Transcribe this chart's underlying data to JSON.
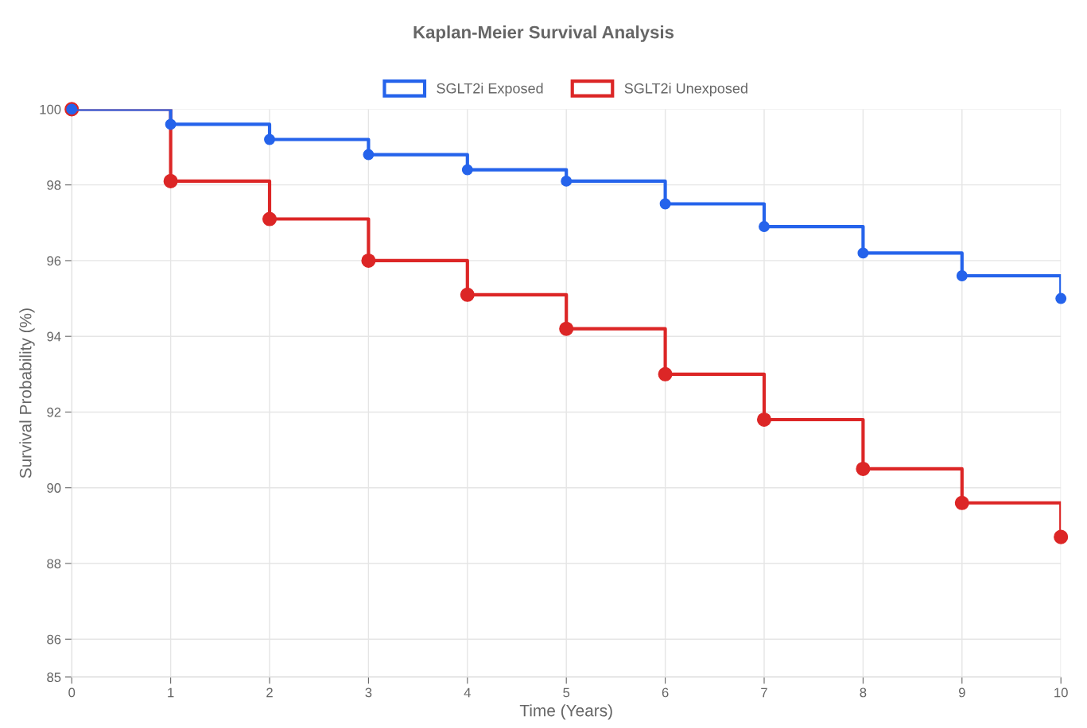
{
  "chart_data": {
    "type": "step",
    "title": "Kaplan-Meier Survival Analysis",
    "xlabel": "Time (Years)",
    "ylabel": "Survival Probability (%)",
    "x": [
      0,
      1,
      2,
      3,
      4,
      5,
      6,
      7,
      8,
      9,
      10
    ],
    "series": [
      {
        "name": "SGLT2i Exposed",
        "color": "#2563eb",
        "values": [
          100,
          99.6,
          99.2,
          98.8,
          98.4,
          98.1,
          97.5,
          96.9,
          96.2,
          95.6,
          95.0
        ]
      },
      {
        "name": "SGLT2i Unexposed",
        "color": "#dc2626",
        "values": [
          100,
          98.1,
          97.1,
          96.0,
          95.1,
          94.2,
          93.0,
          91.8,
          90.5,
          89.6,
          88.7
        ]
      }
    ],
    "xlim": [
      0,
      10
    ],
    "xticks": [
      0,
      1,
      2,
      3,
      4,
      5,
      6,
      7,
      8,
      9,
      10
    ],
    "ylim": [
      85,
      100
    ],
    "yticks": [
      85,
      86,
      88,
      90,
      92,
      94,
      96,
      98,
      100
    ],
    "grid": true,
    "legend": "top",
    "marker": "circle",
    "line_style": "solid"
  }
}
